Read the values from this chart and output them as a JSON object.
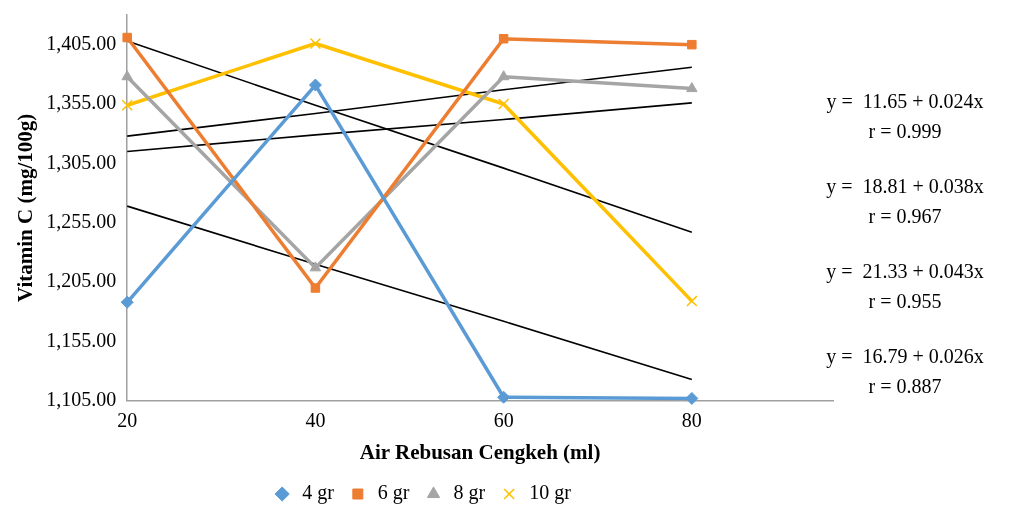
{
  "chart_data": {
    "type": "line",
    "xlabel": "Air Rebusan Cengkeh (ml)",
    "ylabel": "Vitamin C (mg/100g)",
    "x": [
      20,
      40,
      60,
      80
    ],
    "xlim": [
      20,
      95
    ],
    "xticks": [
      20,
      40,
      60,
      80
    ],
    "ylim": [
      1105,
      1430
    ],
    "yticks": [
      {
        "value": 1105,
        "label": "1,105.00"
      },
      {
        "value": 1155,
        "label": "1,155.00"
      },
      {
        "value": 1205,
        "label": "1,205.00"
      },
      {
        "value": 1255,
        "label": "1,255.00"
      },
      {
        "value": 1305,
        "label": "1,305.00"
      },
      {
        "value": 1355,
        "label": "1,355.00"
      },
      {
        "value": 1405,
        "label": "1,405.00"
      }
    ],
    "grid": false,
    "legend": "bottom",
    "series": [
      {
        "name": "4 gr",
        "color": "#5b9bd5",
        "marker": "diamond",
        "values": [
          1188,
          1371,
          1108,
          1107
        ]
      },
      {
        "name": "6 gr",
        "color": "#ed7d31",
        "marker": "square",
        "values": [
          1411,
          1200,
          1410,
          1405
        ]
      },
      {
        "name": "8 gr",
        "color": "#a5a5a5",
        "marker": "triangle",
        "values": [
          1378,
          1217,
          1378,
          1368
        ]
      },
      {
        "name": "10 gr",
        "color": "#ffc000",
        "marker": "cross",
        "values": [
          1354,
          1406,
          1355,
          1189
        ]
      },
      {
        "type": "line",
        "color": "#000000",
        "marker": "none",
        "values": [
          1408,
          1354,
          1301,
          1247
        ]
      },
      {
        "type": "line",
        "color": "#000000",
        "marker": "none",
        "values": [
          1269,
          1220,
          1172,
          1123
        ]
      },
      {
        "type": "line",
        "color": "#000000",
        "marker": "none",
        "values": [
          1328,
          1347,
          1367,
          1386
        ]
      },
      {
        "type": "line",
        "color": "#000000",
        "marker": "none",
        "values": [
          1315,
          1329,
          1342,
          1356
        ]
      }
    ],
    "annotations": [
      "y =  11.65 + 0.024x\nr = 0.999",
      "y =  18.81 + 0.038x\nr = 0.967",
      "y =  21.33 + 0.043x\nr = 0.955",
      "y =  16.79 + 0.026x\nr = 0.887"
    ]
  }
}
